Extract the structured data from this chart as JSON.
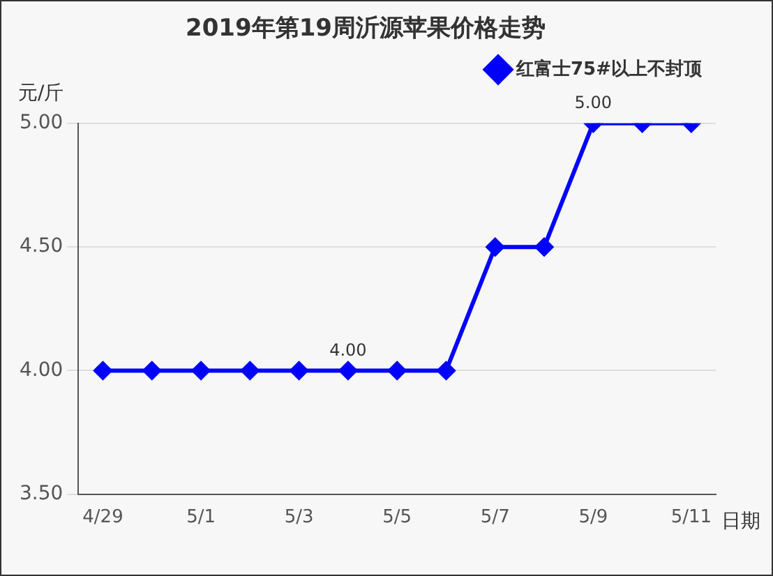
{
  "chart_data": {
    "type": "line",
    "title": "2019年第19周沂源苹果价格走势",
    "ylabel": "元/斤",
    "xlabel": "日期",
    "categories": [
      "4/29",
      null,
      "5/1",
      null,
      "5/3",
      null,
      "5/5",
      null,
      "5/7",
      null,
      "5/9",
      null,
      "5/11"
    ],
    "series": [
      {
        "name": "红富士75#以上不封顶",
        "color": "#0000ff",
        "values": [
          4,
          4,
          4,
          4,
          4,
          4,
          4,
          4,
          4.5,
          4.5,
          5,
          5,
          5
        ],
        "value_labels": [
          null,
          null,
          null,
          null,
          null,
          "4.00",
          null,
          null,
          null,
          null,
          "5.00",
          null,
          null
        ]
      }
    ],
    "ylim": [
      3.5,
      5
    ],
    "yticks": [
      {
        "value": 3.5,
        "label": "3.50"
      },
      {
        "value": 4,
        "label": "4.00"
      },
      {
        "value": 4.5,
        "label": "4.50"
      },
      {
        "value": 5,
        "label": "5.00"
      }
    ],
    "grid": "y",
    "legend": "top right",
    "marker": "diamond",
    "line_style": "solid"
  }
}
